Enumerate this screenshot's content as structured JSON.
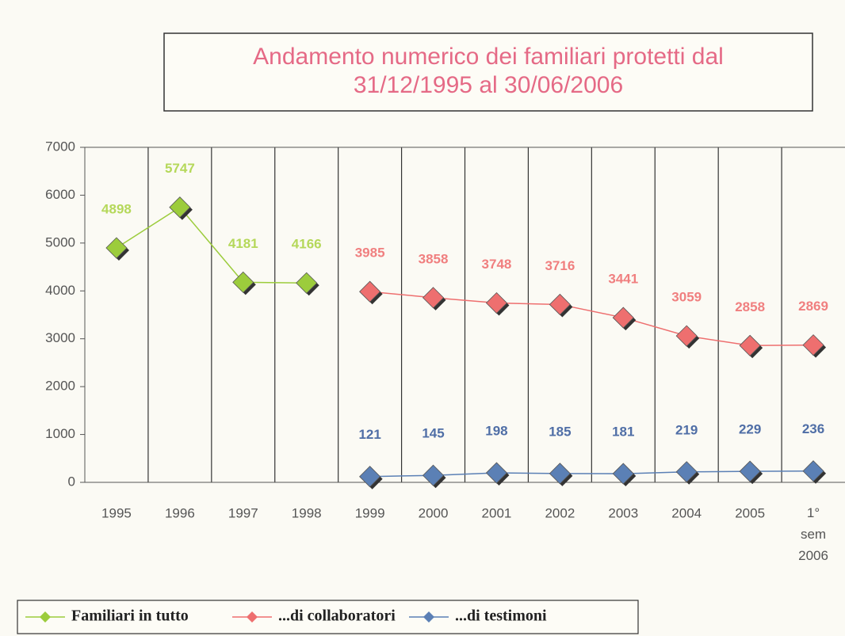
{
  "chart_data": {
    "type": "line",
    "title": "Andamento numerico dei familiari protetti dal\n31/12/1995 al 30/06/2006",
    "categories": [
      "1995",
      "1996",
      "1997",
      "1998",
      "1999",
      "2000",
      "2001",
      "2002",
      "2003",
      "2004",
      "2005",
      "1°\nsem\n2006"
    ],
    "series": [
      {
        "name": "Familiari in tutto",
        "color": "#9ccc3c",
        "values": [
          4898,
          5747,
          4181,
          4166,
          null,
          null,
          null,
          null,
          null,
          null,
          null,
          null
        ]
      },
      {
        "name": "...di collaboratori",
        "color": "#ee6f6f",
        "values": [
          null,
          null,
          null,
          null,
          3985,
          3858,
          3748,
          3716,
          3441,
          3059,
          2858,
          2869
        ]
      },
      {
        "name": "...di testimoni",
        "color": "#5b80b5",
        "values": [
          null,
          null,
          null,
          null,
          121,
          145,
          198,
          185,
          181,
          219,
          229,
          236
        ]
      }
    ],
    "ylim": [
      0,
      7000
    ],
    "yticks": [
      0,
      1000,
      2000,
      3000,
      4000,
      5000,
      6000,
      7000
    ],
    "grid": true
  }
}
